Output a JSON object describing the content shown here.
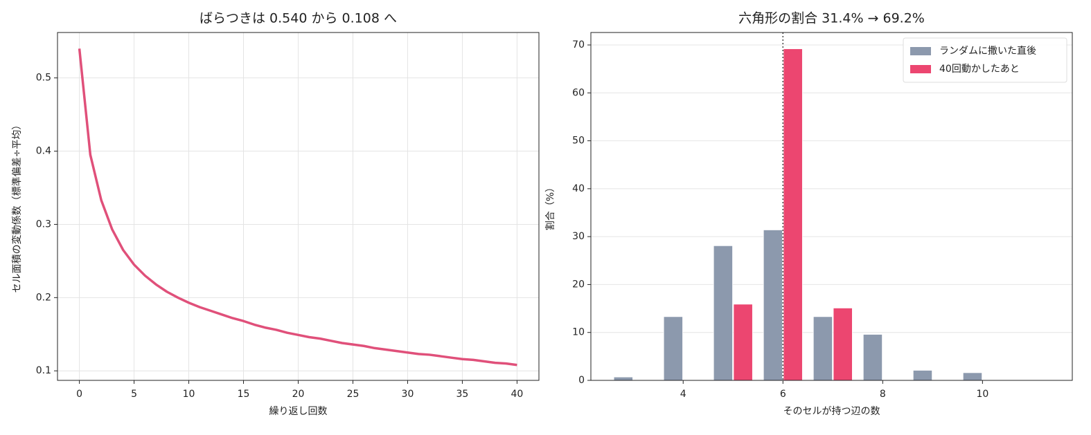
{
  "chart_data": [
    {
      "type": "line",
      "title": "ばらつきは 0.540 から 0.108 へ",
      "x_label": "繰り返し回数",
      "y_label": "セル面積の変動係数（標準偏差÷平均）",
      "x": [
        0,
        1,
        2,
        3,
        4,
        5,
        6,
        7,
        8,
        9,
        10,
        11,
        12,
        13,
        14,
        15,
        16,
        17,
        18,
        19,
        20,
        21,
        22,
        23,
        24,
        25,
        26,
        27,
        28,
        29,
        30,
        31,
        32,
        33,
        34,
        35,
        36,
        37,
        38,
        39,
        40
      ],
      "values": [
        0.54,
        0.395,
        0.333,
        0.293,
        0.265,
        0.245,
        0.23,
        0.218,
        0.208,
        0.2,
        0.193,
        0.187,
        0.182,
        0.177,
        0.172,
        0.168,
        0.163,
        0.159,
        0.156,
        0.152,
        0.149,
        0.146,
        0.144,
        0.141,
        0.138,
        0.136,
        0.134,
        0.131,
        0.129,
        0.127,
        0.125,
        0.123,
        0.122,
        0.12,
        0.118,
        0.116,
        0.115,
        0.113,
        0.111,
        0.11,
        0.108
      ],
      "color": "#e0507a",
      "xlim": [
        -2,
        42
      ],
      "xticks": [
        0,
        5,
        10,
        15,
        20,
        25,
        30,
        35,
        40
      ],
      "ylim": [
        0.087,
        0.562
      ],
      "yticks": [
        0.1,
        0.2,
        0.3,
        0.4,
        0.5
      ],
      "grid": "both"
    },
    {
      "type": "bar",
      "title": "六角形の割合 31.4% → 69.2%",
      "x_label": "そのセルが持つ辺の数",
      "y_label": "割合（%）",
      "x": [
        3,
        4,
        5,
        6,
        7,
        8,
        9,
        10
      ],
      "series": [
        {
          "name": "ランダムに撒いた直後",
          "color": "#8c99ad",
          "values": [
            0.7,
            13.3,
            28.1,
            31.4,
            13.3,
            9.6,
            2.1,
            1.6
          ]
        },
        {
          "name": "40回動かしたあと",
          "color": "#ec4670",
          "values": [
            0,
            0,
            15.9,
            69.2,
            15.1,
            0,
            0,
            0
          ]
        }
      ],
      "vline": 6,
      "xlim": [
        2.15,
        11.8
      ],
      "xticks": [
        4,
        6,
        8,
        10
      ],
      "ylim": [
        0,
        72.6
      ],
      "yticks": [
        0,
        10,
        20,
        30,
        40,
        50,
        60,
        70
      ],
      "grid": "y",
      "legend": "upper-right"
    }
  ]
}
